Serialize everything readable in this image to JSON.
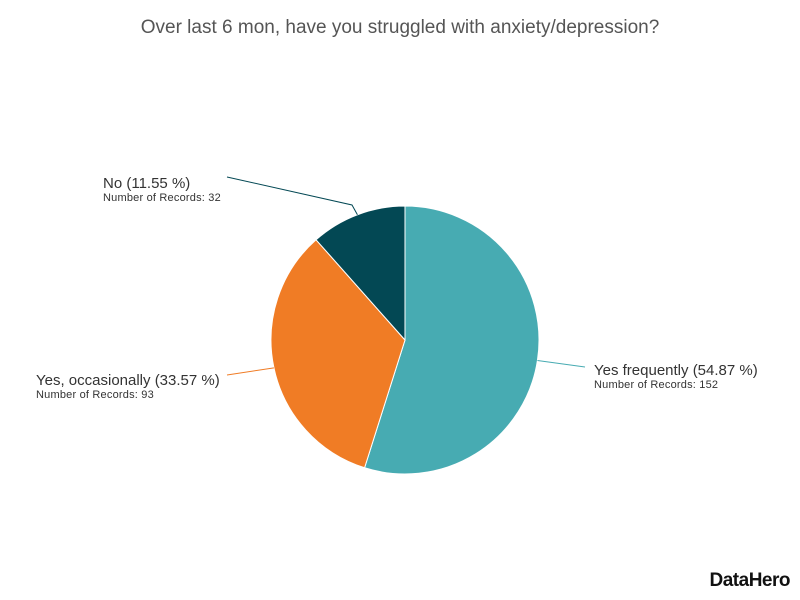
{
  "chart_data": {
    "type": "pie",
    "title": "Over last 6 mon, have you struggled with anxiety/depression?",
    "slices": [
      {
        "label": "Yes frequently",
        "percent": 54.87,
        "percent_text": "(54.87 %)",
        "records": 152,
        "records_text": "Number of Records: 152",
        "color": "#47abb2"
      },
      {
        "label": "Yes, occasionally",
        "percent": 33.57,
        "percent_text": "(33.57 %)",
        "records": 93,
        "records_text": "Number of Records: 93",
        "color": "#f07c25"
      },
      {
        "label": "No",
        "percent": 11.55,
        "percent_text": "(11.55 %)",
        "records": 32,
        "records_text": "Number of Records: 32",
        "color": "#034854"
      }
    ],
    "start": "top",
    "direction": "clockwise"
  },
  "branding": {
    "logo": "DataHero"
  }
}
